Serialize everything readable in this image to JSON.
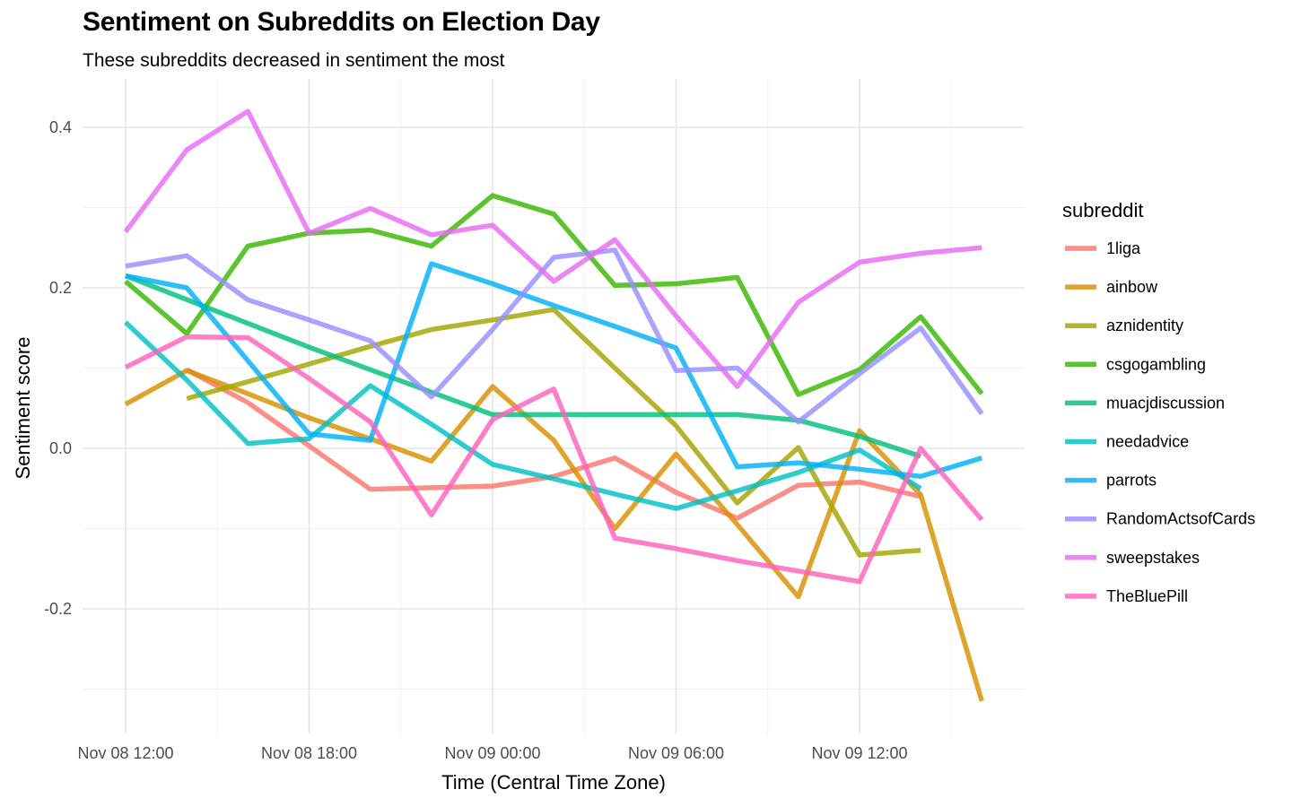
{
  "chart_data": {
    "type": "line",
    "title": "Sentiment on Subreddits on Election Day",
    "subtitle": "These subreddits decreased in sentiment the most",
    "xlabel": "Time (Central Time Zone)",
    "ylabel": "Sentiment score",
    "x_tick_labels": [
      "Nov 08 12:00",
      "Nov 08 18:00",
      "Nov 09 00:00",
      "Nov 09 06:00",
      "Nov 09 12:00"
    ],
    "x_tick_hours": [
      0,
      6,
      12,
      18,
      24
    ],
    "x_unit": "hours after Nov 08 12:00",
    "y_ticks": [
      -0.2,
      0.0,
      0.2,
      0.4
    ],
    "y_tick_labels": [
      "-0.2",
      "0.0",
      "0.2",
      "0.4"
    ],
    "xlim": [
      -1.5,
      29.2
    ],
    "ylim": [
      -0.35,
      0.47
    ],
    "grid": true,
    "legend_title": "subreddit",
    "legend_position": "right",
    "series": [
      {
        "name": "1liga",
        "color": "#F8766D",
        "points": [
          [
            2,
            0.098
          ],
          [
            4,
            0.057
          ],
          [
            6,
            0.003
          ],
          [
            8,
            -0.051
          ],
          [
            10,
            -0.049
          ],
          [
            12,
            -0.047
          ],
          [
            14,
            -0.035
          ],
          [
            16,
            -0.012
          ],
          [
            18,
            -0.055
          ],
          [
            20,
            -0.087
          ],
          [
            22,
            -0.046
          ],
          [
            24,
            -0.042
          ],
          [
            26,
            -0.06
          ]
        ]
      },
      {
        "name": "ainbow",
        "color": "#D89000",
        "points": [
          [
            0,
            0.055
          ],
          [
            2,
            0.097
          ],
          [
            4,
            0.068
          ],
          [
            6,
            0.038
          ],
          [
            8,
            0.012
          ],
          [
            10,
            -0.016
          ],
          [
            12,
            0.077
          ],
          [
            14,
            0.01
          ],
          [
            16,
            -0.1
          ],
          [
            18,
            -0.007
          ],
          [
            20,
            -0.095
          ],
          [
            22,
            -0.185
          ],
          [
            24,
            0.022
          ],
          [
            26,
            -0.058
          ],
          [
            28,
            -0.315
          ]
        ]
      },
      {
        "name": "aznidentity",
        "color": "#A3A500",
        "points": [
          [
            2,
            0.062
          ],
          [
            4,
            0.083
          ],
          [
            6,
            0.105
          ],
          [
            8,
            0.127
          ],
          [
            10,
            0.148
          ],
          [
            12,
            0.16
          ],
          [
            14,
            0.173
          ],
          [
            16,
            0.1
          ],
          [
            18,
            0.028
          ],
          [
            20,
            -0.068
          ],
          [
            22,
            0.001
          ],
          [
            24,
            -0.133
          ],
          [
            26,
            -0.127
          ]
        ]
      },
      {
        "name": "csgogambling",
        "color": "#39B600",
        "points": [
          [
            0,
            0.208
          ],
          [
            2,
            0.143
          ],
          [
            4,
            0.252
          ],
          [
            6,
            0.268
          ],
          [
            8,
            0.272
          ],
          [
            10,
            0.252
          ],
          [
            12,
            0.315
          ],
          [
            14,
            0.292
          ],
          [
            16,
            0.203
          ],
          [
            18,
            0.205
          ],
          [
            20,
            0.213
          ],
          [
            22,
            0.067
          ],
          [
            24,
            0.098
          ],
          [
            26,
            0.164
          ],
          [
            28,
            0.068
          ]
        ]
      },
      {
        "name": "muacjdiscussion",
        "color": "#00BF7D",
        "points": [
          [
            0,
            0.215
          ],
          [
            6,
            0.126
          ],
          [
            12,
            0.042
          ],
          [
            14,
            0.042
          ],
          [
            16,
            0.042
          ],
          [
            18,
            0.042
          ],
          [
            20,
            0.042
          ],
          [
            22,
            0.035
          ],
          [
            24,
            0.015
          ],
          [
            26,
            -0.01
          ]
        ]
      },
      {
        "name": "needadvice",
        "color": "#00BFC4",
        "points": [
          [
            0,
            0.157
          ],
          [
            2,
            0.085
          ],
          [
            4,
            0.006
          ],
          [
            6,
            0.012
          ],
          [
            8,
            0.078
          ],
          [
            10,
            0.03
          ],
          [
            12,
            -0.02
          ],
          [
            14,
            -0.038
          ],
          [
            16,
            -0.057
          ],
          [
            18,
            -0.075
          ],
          [
            20,
            -0.053
          ],
          [
            22,
            -0.03
          ],
          [
            24,
            -0.002
          ],
          [
            26,
            -0.05
          ]
        ]
      },
      {
        "name": "parrots",
        "color": "#00B0F6",
        "points": [
          [
            0,
            0.215
          ],
          [
            2,
            0.2
          ],
          [
            4,
            0.109
          ],
          [
            6,
            0.018
          ],
          [
            8,
            0.01
          ],
          [
            10,
            0.23
          ],
          [
            12,
            0.205
          ],
          [
            14,
            0.178
          ],
          [
            16,
            0.152
          ],
          [
            18,
            0.125
          ],
          [
            20,
            -0.023
          ],
          [
            22,
            -0.018
          ],
          [
            24,
            -0.026
          ],
          [
            26,
            -0.035
          ],
          [
            28,
            -0.012
          ]
        ]
      },
      {
        "name": "RandomActsofCards",
        "color": "#9590FF",
        "points": [
          [
            0,
            0.227
          ],
          [
            2,
            0.24
          ],
          [
            4,
            0.185
          ],
          [
            6,
            0.16
          ],
          [
            8,
            0.134
          ],
          [
            10,
            0.064
          ],
          [
            12,
            0.148
          ],
          [
            14,
            0.238
          ],
          [
            16,
            0.247
          ],
          [
            18,
            0.097
          ],
          [
            20,
            0.1
          ],
          [
            22,
            0.033
          ],
          [
            24,
            0.093
          ],
          [
            26,
            0.15
          ],
          [
            28,
            0.043
          ]
        ]
      },
      {
        "name": "sweepstakes",
        "color": "#E76BF3",
        "points": [
          [
            0,
            0.27
          ],
          [
            2,
            0.372
          ],
          [
            4,
            0.42
          ],
          [
            6,
            0.268
          ],
          [
            8,
            0.299
          ],
          [
            10,
            0.266
          ],
          [
            12,
            0.278
          ],
          [
            14,
            0.208
          ],
          [
            16,
            0.26
          ],
          [
            18,
            0.165
          ],
          [
            20,
            0.077
          ],
          [
            22,
            0.182
          ],
          [
            24,
            0.232
          ],
          [
            26,
            0.243
          ],
          [
            28,
            0.25
          ]
        ]
      },
      {
        "name": "TheBluePill",
        "color": "#FF62BC",
        "points": [
          [
            0,
            0.101
          ],
          [
            2,
            0.139
          ],
          [
            4,
            0.138
          ],
          [
            6,
            0.087
          ],
          [
            8,
            0.033
          ],
          [
            10,
            -0.083
          ],
          [
            12,
            0.036
          ],
          [
            14,
            0.074
          ],
          [
            16,
            -0.112
          ],
          [
            18,
            -0.125
          ],
          [
            20,
            -0.14
          ],
          [
            22,
            -0.153
          ],
          [
            24,
            -0.166
          ],
          [
            26,
            0.0
          ],
          [
            28,
            -0.089
          ]
        ]
      }
    ]
  }
}
